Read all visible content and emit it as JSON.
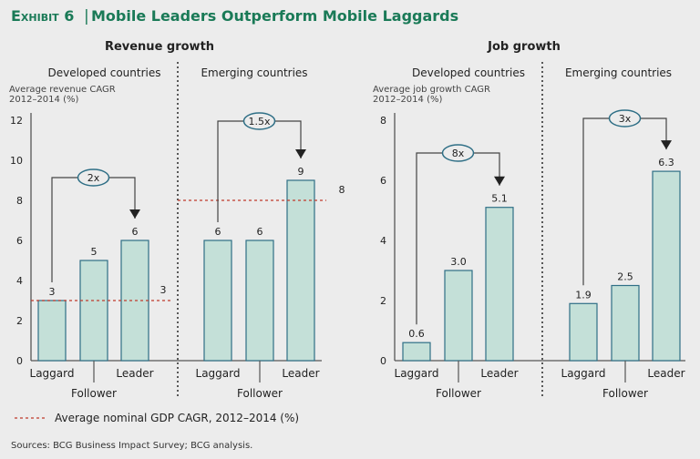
{
  "title": {
    "exhibit": "Exhibit 6",
    "separator": "|",
    "text": "Mobile Leaders Outperform Mobile Laggards"
  },
  "colors": {
    "title": "#1a7a57",
    "bar_fill": "#c4e0d8",
    "bar_stroke": "#2f6f86",
    "gdp_line": "#c0392b",
    "background": "#ececec"
  },
  "legend": {
    "gdp_label": "Average nominal GDP CAGR, 2012–2014 (%)"
  },
  "sources": "Sources: BCG Business Impact Survey; BCG analysis.",
  "chart_data": [
    {
      "type": "bar",
      "title": "Revenue growth",
      "ylabel": "Average revenue CAGR 2012–2014 (%)",
      "ylabel_lines": [
        "Average revenue CAGR",
        "2012–2014 (%)"
      ],
      "ylim": [
        0,
        12
      ],
      "yticks": [
        0,
        2,
        4,
        6,
        8,
        10,
        12
      ],
      "groups": [
        {
          "name": "Developed countries",
          "categories": [
            "Laggard",
            "Follower",
            "Leader"
          ],
          "values": [
            3,
            5,
            6
          ],
          "labels": [
            "3",
            "5",
            "6"
          ],
          "gdp": 3,
          "gdp_label": "3",
          "multiplier": "2x"
        },
        {
          "name": "Emerging countries",
          "categories": [
            "Laggard",
            "Follower",
            "Leader"
          ],
          "values": [
            6,
            6,
            9
          ],
          "labels": [
            "6",
            "6",
            "9"
          ],
          "gdp": 8,
          "gdp_label": "8",
          "multiplier": "1.5x"
        }
      ]
    },
    {
      "type": "bar",
      "title": "Job growth",
      "ylabel": "Average job growth CAGR 2012–2014 (%)",
      "ylabel_lines": [
        "Average job growth CAGR",
        "2012–2014 (%)"
      ],
      "ylim": [
        0,
        8
      ],
      "yticks": [
        0,
        2,
        4,
        6,
        8
      ],
      "groups": [
        {
          "name": "Developed countries",
          "categories": [
            "Laggard",
            "Follower",
            "Leader"
          ],
          "values": [
            0.6,
            3.0,
            5.1
          ],
          "labels": [
            "0.6",
            "3.0",
            "5.1"
          ],
          "multiplier": "8x"
        },
        {
          "name": "Emerging countries",
          "categories": [
            "Laggard",
            "Follower",
            "Leader"
          ],
          "values": [
            1.9,
            2.5,
            6.3
          ],
          "labels": [
            "1.9",
            "2.5",
            "6.3"
          ],
          "multiplier": "3x"
        }
      ]
    }
  ]
}
